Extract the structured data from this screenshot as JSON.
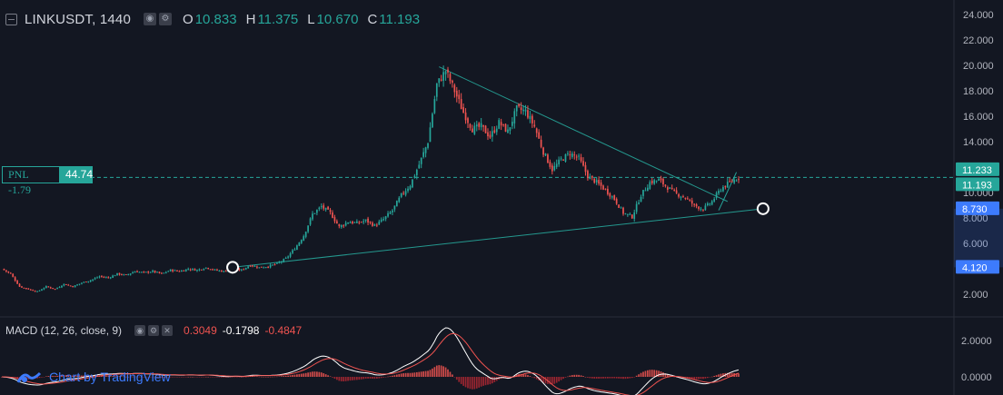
{
  "legend": {
    "ticker": "LINKUSDT, 1440",
    "open_label": "O",
    "open": "10.833",
    "high_label": "H",
    "high": "11.375",
    "low_label": "L",
    "low": "10.670",
    "close_label": "C",
    "close": "11.193"
  },
  "pnl": {
    "label": "PNL -1.79",
    "value": "44.74"
  },
  "macd": {
    "label": "MACD (12, 26, close, 9)",
    "hist": "0.3049",
    "macd": "-0.1798",
    "signal": "-0.4847"
  },
  "branding": {
    "text": "Chart by TradingView"
  },
  "colors": {
    "up": "#26a69a",
    "down": "#ef5350",
    "bg": "#131722",
    "grid": "#1e222d",
    "accent": "#3d7bfd"
  },
  "chart_data": {
    "type": "candlestick",
    "price_axis_ticks": [
      "24.000",
      "22.000",
      "20.000",
      "18.000",
      "16.000",
      "14.000",
      "10.000",
      "8.000",
      "6.000",
      "2.000"
    ],
    "macd_axis_ticks": [
      "2.0000",
      "0.0000"
    ],
    "ylim": [
      0.5,
      24.8
    ],
    "price_labels": [
      {
        "text": "11.233",
        "value": 11.233,
        "color": "#26a69a"
      },
      {
        "text": "11.193",
        "value": 11.193,
        "color": "#26a69a"
      },
      {
        "text": "8.730",
        "value": 8.73,
        "color": "#3d7bfd"
      },
      {
        "text": "4.120",
        "value": 4.12,
        "color": "#3d7bfd"
      }
    ],
    "close_path": [
      [
        0,
        4.0
      ],
      [
        4,
        3.6
      ],
      [
        8,
        2.6
      ],
      [
        12,
        2.4
      ],
      [
        16,
        2.2
      ],
      [
        20,
        2.6
      ],
      [
        24,
        2.4
      ],
      [
        28,
        2.8
      ],
      [
        32,
        2.6
      ],
      [
        36,
        2.9
      ],
      [
        40,
        3.1
      ],
      [
        44,
        3.4
      ],
      [
        48,
        3.3
      ],
      [
        52,
        3.6
      ],
      [
        56,
        3.5
      ],
      [
        60,
        3.8
      ],
      [
        64,
        3.7
      ],
      [
        68,
        3.8
      ],
      [
        72,
        3.6
      ],
      [
        76,
        3.9
      ],
      [
        80,
        3.8
      ],
      [
        84,
        4.0
      ],
      [
        88,
        3.9
      ],
      [
        92,
        4.1
      ],
      [
        96,
        3.9
      ],
      [
        100,
        3.8
      ],
      [
        104,
        4.0
      ],
      [
        108,
        3.9
      ],
      [
        112,
        4.3
      ],
      [
        116,
        4.1
      ],
      [
        120,
        4.2
      ],
      [
        124,
        4.4
      ],
      [
        128,
        4.8
      ],
      [
        132,
        5.6
      ],
      [
        136,
        6.6
      ],
      [
        140,
        8.3
      ],
      [
        144,
        8.9
      ],
      [
        148,
        8.4
      ],
      [
        152,
        7.3
      ],
      [
        156,
        7.7
      ],
      [
        160,
        7.6
      ],
      [
        164,
        7.8
      ],
      [
        168,
        7.4
      ],
      [
        172,
        7.9
      ],
      [
        176,
        8.6
      ],
      [
        180,
        9.8
      ],
      [
        184,
        10.6
      ],
      [
        188,
        12.2
      ],
      [
        192,
        14.0
      ],
      [
        196,
        18.5
      ],
      [
        200,
        19.6
      ],
      [
        204,
        18.0
      ],
      [
        208,
        16.3
      ],
      [
        212,
        15.0
      ],
      [
        216,
        15.2
      ],
      [
        220,
        14.4
      ],
      [
        224,
        15.5
      ],
      [
        228,
        14.8
      ],
      [
        232,
        16.6
      ],
      [
        236,
        16.4
      ],
      [
        240,
        15.2
      ],
      [
        244,
        13.2
      ],
      [
        248,
        11.8
      ],
      [
        252,
        12.6
      ],
      [
        256,
        13.1
      ],
      [
        260,
        12.7
      ],
      [
        264,
        11.3
      ],
      [
        268,
        10.8
      ],
      [
        272,
        10.2
      ],
      [
        276,
        9.5
      ],
      [
        280,
        8.4
      ],
      [
        284,
        8.1
      ],
      [
        288,
        9.8
      ],
      [
        292,
        10.8
      ],
      [
        296,
        11.0
      ],
      [
        300,
        10.4
      ],
      [
        304,
        9.9
      ],
      [
        308,
        9.6
      ],
      [
        312,
        9.0
      ],
      [
        316,
        8.7
      ],
      [
        320,
        9.3
      ],
      [
        324,
        10.3
      ],
      [
        328,
        10.8
      ],
      [
        332,
        11.193
      ]
    ],
    "triangle_upper": [
      [
        197,
        19.9
      ],
      [
        327,
        9.3
      ]
    ],
    "triangle_lower": [
      [
        104,
        4.12
      ],
      [
        343,
        8.73
      ]
    ],
    "markers": [
      [
        104,
        4.12
      ],
      [
        343,
        8.73
      ]
    ]
  }
}
